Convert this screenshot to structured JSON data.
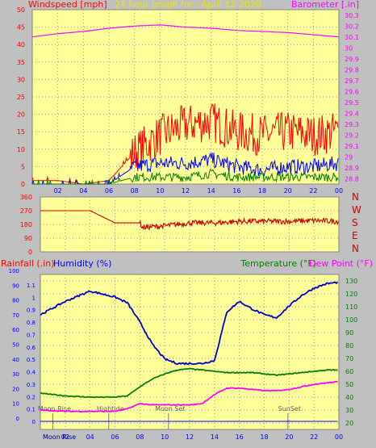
{
  "title": "24 hour graph for : April 12 2020",
  "colors": {
    "background": "#c0c0c0",
    "plot": "#ffff99",
    "wind": "#ff0000",
    "wind_avg": "#0000ff",
    "wind_low": "#008000",
    "barometer": "#ff00ff",
    "direction": "#cc0000",
    "rain": "#0000ff",
    "humidity": "#0000cc",
    "temperature": "#008000",
    "dewpoint": "#ff00ff",
    "label_red": "#ff0000",
    "label_blue": "#0000ff",
    "label_green": "#008000",
    "label_magenta": "#ff00ff"
  },
  "panel1": {
    "left_axis_label": "Windspeed [mph]",
    "right_axis_label": "Barometer [.in]",
    "left_ticks": [
      "0",
      "5",
      "10",
      "15",
      "20",
      "25",
      "30",
      "35",
      "40",
      "45",
      "50"
    ],
    "right_ticks": [
      "28.8",
      "28.9",
      "29",
      "29.1",
      "29.2",
      "29.3",
      "29.4",
      "29.5",
      "29.6",
      "29.7",
      "29.8",
      "29.9",
      "30",
      "30.1",
      "30.2",
      "30.3"
    ]
  },
  "panel2": {
    "left_ticks": [
      "0",
      "90",
      "180",
      "270",
      "360"
    ],
    "right_letters": [
      "N",
      "W",
      "S",
      "E",
      "N"
    ]
  },
  "panel3": {
    "rain_label": "Rainfall (.in)",
    "humidity_label": "Humidity (%)",
    "temperature_label": "Temperature (°F)",
    "dewpoint_label": "Dew Point (°F)",
    "rain_ticks": [
      "0",
      "0.1",
      "0.2",
      "0.3",
      "0.4",
      "0.5",
      "0.6",
      "0.7",
      "0.8",
      "0.9",
      "1",
      "1.1"
    ],
    "humidity_ticks": [
      "0",
      "10",
      "20",
      "30",
      "40",
      "50",
      "60",
      "70",
      "80",
      "90",
      "100"
    ],
    "temp_ticks": [
      "20",
      "30",
      "40",
      "50",
      "60",
      "70",
      "80",
      "90",
      "100",
      "110",
      "120",
      "130"
    ],
    "events": [
      {
        "label": "Moon Rise",
        "hour": 1.0
      },
      {
        "label": "Hightide",
        "hour": 5.5
      },
      {
        "label": "Moon Set",
        "hour": 10.3
      },
      {
        "label": "SunSet",
        "hour": 19.9
      }
    ],
    "bottom_note": "Moon Rise"
  },
  "x_tick_labels": [
    "02",
    "04",
    "06",
    "08",
    "10",
    "12",
    "14",
    "16",
    "18",
    "20",
    "22",
    "00"
  ],
  "chart_data": [
    {
      "type": "line",
      "title": "24 hour graph for : April 12 2020",
      "ylabel": "Windspeed [mph]",
      "ylabel_right": "Barometer [.in]",
      "ylim": [
        0,
        50
      ],
      "ylim_right": [
        28.75,
        30.35
      ],
      "x_hours": [
        0,
        2,
        4,
        6,
        8,
        10,
        12,
        14,
        16,
        18,
        20,
        22,
        24
      ],
      "series": [
        {
          "name": "",
          "role": "gust",
          "axis": "left",
          "values": [
            1,
            1,
            0,
            1,
            9,
            14,
            17,
            18,
            15,
            14,
            15,
            14,
            15
          ]
        },
        {
          "name": "",
          "role": "average",
          "axis": "left",
          "values": [
            0,
            0,
            0,
            0,
            5,
            6,
            6,
            7,
            5,
            4,
            5,
            5,
            6
          ]
        },
        {
          "name": "",
          "role": "low",
          "axis": "left",
          "values": [
            0,
            0,
            0,
            0,
            2,
            2,
            2,
            3,
            2,
            2,
            2,
            2,
            2
          ]
        },
        {
          "name": "",
          "role": "barometer",
          "axis": "right",
          "values": [
            30.1,
            30.13,
            30.15,
            30.18,
            30.2,
            30.21,
            30.19,
            30.18,
            30.16,
            30.15,
            30.14,
            30.12,
            30.1
          ]
        }
      ]
    },
    {
      "type": "line",
      "ylim": [
        0,
        360
      ],
      "x_hours": [
        0,
        2,
        4,
        5,
        6,
        8,
        8.2,
        10,
        12,
        14,
        16,
        18,
        20,
        22,
        24
      ],
      "series": [
        {
          "name": "",
          "role": "wind_direction",
          "values": [
            270,
            270,
            270,
            230,
            190,
            190,
            160,
            170,
            190,
            190,
            200,
            200,
            200,
            205,
            200
          ]
        }
      ]
    },
    {
      "type": "line",
      "x_hours": [
        0,
        2,
        4,
        6,
        7,
        8,
        9,
        10,
        11,
        12,
        13,
        14,
        15,
        16,
        17,
        18,
        19,
        20,
        21,
        22,
        23,
        24
      ],
      "series": [
        {
          "name": "",
          "role": "rainfall",
          "axis": "rain",
          "ylim": [
            0,
            1.1
          ],
          "values": [
            0,
            0,
            0,
            0,
            0,
            0,
            0,
            0,
            0,
            0,
            0,
            0,
            0,
            0,
            0,
            0,
            0,
            0,
            0,
            0,
            0,
            0
          ]
        },
        {
          "name": "",
          "role": "humidity",
          "axis": "humidity",
          "ylim": [
            0,
            100
          ],
          "values": [
            70,
            79,
            86,
            82,
            78,
            65,
            50,
            40,
            37,
            37,
            37,
            39,
            72,
            79,
            74,
            70,
            68,
            76,
            83,
            88,
            91,
            92
          ]
        },
        {
          "name": "",
          "role": "temperature",
          "axis": "temp",
          "ylim": [
            15,
            135
          ],
          "values": [
            43,
            41,
            40,
            40,
            41,
            48,
            54,
            58,
            61,
            62,
            61,
            60,
            59,
            59,
            59,
            58,
            57,
            58,
            59,
            60,
            61,
            61
          ]
        },
        {
          "name": "",
          "role": "dewpoint",
          "axis": "temp",
          "ylim": [
            15,
            135
          ],
          "values": [
            30,
            29,
            29,
            29,
            31,
            35,
            34,
            34,
            34,
            34,
            35,
            42,
            47,
            47,
            46,
            45,
            45,
            46,
            48,
            50,
            51,
            52
          ]
        }
      ]
    }
  ]
}
